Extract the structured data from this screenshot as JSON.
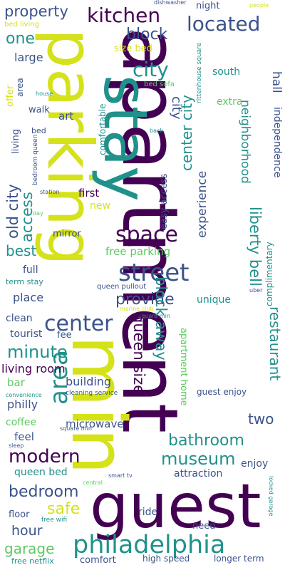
{
  "palette": {
    "dark_purple": "#440154",
    "indigo": "#3b528b",
    "teal": "#21918c",
    "green": "#5ec962",
    "yellow_green": "#d5e21a"
  },
  "words": [
    {
      "text": "apartment"
    },
    {
      "text": "parking"
    },
    {
      "text": "stay"
    },
    {
      "text": "min"
    },
    {
      "text": "guest"
    },
    {
      "text": "philadelphia"
    },
    {
      "text": "street"
    },
    {
      "text": "area"
    },
    {
      "text": "center"
    },
    {
      "text": "space"
    },
    {
      "text": "kitchen"
    },
    {
      "text": "located"
    },
    {
      "text": "property"
    },
    {
      "text": "city"
    },
    {
      "text": "block"
    },
    {
      "text": "one"
    },
    {
      "text": "large"
    },
    {
      "text": "night"
    },
    {
      "text": "size bed"
    },
    {
      "text": "bed living"
    },
    {
      "text": "dishwasher"
    },
    {
      "text": "people"
    },
    {
      "text": "south"
    },
    {
      "text": "offer"
    },
    {
      "text": "area"
    },
    {
      "text": "house"
    },
    {
      "text": "bed sofa"
    },
    {
      "text": "comfortable"
    },
    {
      "text": "extra"
    },
    {
      "text": "walk"
    },
    {
      "text": "art"
    },
    {
      "text": "living"
    },
    {
      "text": "city"
    },
    {
      "text": "neighborhood"
    },
    {
      "text": "hall"
    },
    {
      "text": "independence"
    },
    {
      "text": "rittenhouse square"
    },
    {
      "text": "bed"
    },
    {
      "text": "bedroom queen"
    },
    {
      "text": "back"
    },
    {
      "text": "center city"
    },
    {
      "text": "easy access"
    },
    {
      "text": "access"
    },
    {
      "text": "old city"
    },
    {
      "text": "experience"
    },
    {
      "text": "station"
    },
    {
      "text": "first"
    },
    {
      "text": "new"
    },
    {
      "text": "day"
    },
    {
      "text": "liberty bell"
    },
    {
      "text": "mirror"
    },
    {
      "text": "complimentary"
    },
    {
      "text": "best"
    },
    {
      "text": "free parking"
    },
    {
      "text": "full"
    },
    {
      "text": "term stay"
    },
    {
      "text": "queen pullout"
    },
    {
      "text": "uber"
    },
    {
      "text": "place"
    },
    {
      "text": "provide"
    },
    {
      "text": "unique"
    },
    {
      "text": "marine club"
    },
    {
      "text": "square min"
    },
    {
      "text": "restaurant"
    },
    {
      "text": "clean"
    },
    {
      "text": "tourist"
    },
    {
      "text": "fee"
    },
    {
      "text": "queen size"
    },
    {
      "text": "block away"
    },
    {
      "text": "apartment home"
    },
    {
      "text": "minute"
    },
    {
      "text": "living room"
    },
    {
      "text": "building"
    },
    {
      "text": "bar"
    },
    {
      "text": "convenience"
    },
    {
      "text": "cleaning service"
    },
    {
      "text": "guest enjoy"
    },
    {
      "text": "philly"
    },
    {
      "text": "two"
    },
    {
      "text": "coffee"
    },
    {
      "text": "microwave"
    },
    {
      "text": "feel"
    },
    {
      "text": "sleep"
    },
    {
      "text": "square min"
    },
    {
      "text": "bathroom"
    },
    {
      "text": "modern"
    },
    {
      "text": "museum"
    },
    {
      "text": "enjoy"
    },
    {
      "text": "queen bed"
    },
    {
      "text": "attraction"
    },
    {
      "text": "smart tv"
    },
    {
      "text": "central"
    },
    {
      "text": "bedroom"
    },
    {
      "text": "safe"
    },
    {
      "text": "hour"
    },
    {
      "text": "floor"
    },
    {
      "text": "free wifi"
    },
    {
      "text": "ride"
    },
    {
      "text": "need"
    },
    {
      "text": "locked garage"
    },
    {
      "text": "garage"
    },
    {
      "text": "free netflix"
    },
    {
      "text": "comfort"
    },
    {
      "text": "high speed"
    },
    {
      "text": "longer term"
    }
  ]
}
